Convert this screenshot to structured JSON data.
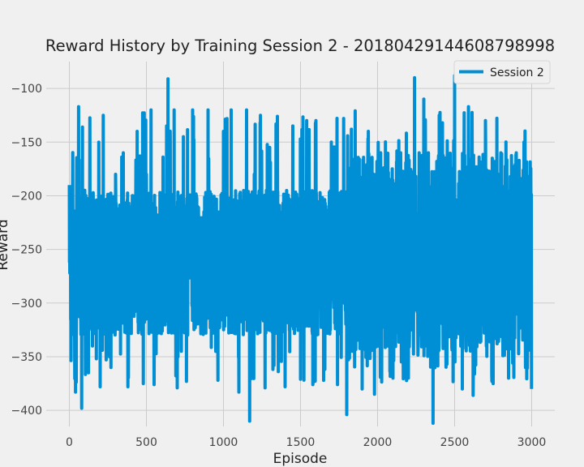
{
  "chart_data": {
    "type": "line",
    "title": "Reward History by Training Session 2 - 20180429144608798998",
    "xlabel": "Episode",
    "ylabel": "Reward",
    "xlim": [
      -150,
      3150
    ],
    "ylim": [
      -415,
      -75
    ],
    "xticks": [
      0,
      500,
      1000,
      1500,
      2000,
      2500,
      3000
    ],
    "yticks": [
      -400,
      -350,
      -300,
      -250,
      -200,
      -150,
      -100
    ],
    "xtick_labels": [
      "0",
      "500",
      "1000",
      "1500",
      "2000",
      "2500",
      "3000"
    ],
    "ytick_labels": [
      "−400",
      "−350",
      "−300",
      "−250",
      "−200",
      "−150",
      "−100"
    ],
    "grid": true,
    "legend": {
      "position": "top-right"
    },
    "colors": {
      "series": "#008fd5",
      "background": "#f0f0f0",
      "grid": "#cbcbcb"
    },
    "series": [
      {
        "name": "Session 2",
        "episodes": 3000,
        "points": [
          [
            0,
            -190
          ],
          [
            40,
            -383
          ],
          [
            60,
            -117
          ],
          [
            80,
            -398
          ],
          [
            100,
            -195
          ],
          [
            150,
            -340
          ],
          [
            200,
            -378
          ],
          [
            220,
            -125
          ],
          [
            260,
            -350
          ],
          [
            300,
            -180
          ],
          [
            350,
            -160
          ],
          [
            380,
            -378
          ],
          [
            440,
            -140
          ],
          [
            480,
            -375
          ],
          [
            500,
            -180
          ],
          [
            530,
            -120
          ],
          [
            550,
            -376
          ],
          [
            600,
            -260
          ],
          [
            640,
            -91
          ],
          [
            680,
            -120
          ],
          [
            700,
            -379
          ],
          [
            740,
            -145
          ],
          [
            760,
            -373
          ],
          [
            800,
            -120
          ],
          [
            850,
            -320
          ],
          [
            900,
            -120
          ],
          [
            950,
            -345
          ],
          [
            1000,
            -140
          ],
          [
            1050,
            -120
          ],
          [
            1100,
            -383
          ],
          [
            1150,
            -120
          ],
          [
            1170,
            -410
          ],
          [
            1200,
            -180
          ],
          [
            1240,
            -125
          ],
          [
            1270,
            -379
          ],
          [
            1300,
            -155
          ],
          [
            1350,
            -126
          ],
          [
            1400,
            -378
          ],
          [
            1450,
            -135
          ],
          [
            1500,
            -371
          ],
          [
            1540,
            -130
          ],
          [
            1580,
            -376
          ],
          [
            1600,
            -130
          ],
          [
            1650,
            -372
          ],
          [
            1700,
            -150
          ],
          [
            1740,
            -376
          ],
          [
            1780,
            -128
          ],
          [
            1800,
            -404
          ],
          [
            1830,
            -138
          ],
          [
            1900,
            -380
          ],
          [
            1940,
            -140
          ],
          [
            1980,
            -385
          ],
          [
            2020,
            -160
          ],
          [
            2100,
            -370
          ],
          [
            2150,
            -160
          ],
          [
            2200,
            -370
          ],
          [
            2240,
            -90
          ],
          [
            2270,
            -160
          ],
          [
            2300,
            -110
          ],
          [
            2330,
            -160
          ],
          [
            2360,
            -412
          ],
          [
            2400,
            -125
          ],
          [
            2450,
            -357
          ],
          [
            2500,
            -88
          ],
          [
            2550,
            -380
          ],
          [
            2590,
            -117
          ],
          [
            2620,
            -386
          ],
          [
            2700,
            -130
          ],
          [
            2750,
            -375
          ],
          [
            2800,
            -160
          ],
          [
            2850,
            -370
          ],
          [
            2900,
            -160
          ],
          [
            2950,
            -150
          ],
          [
            3000,
            -380
          ]
        ]
      }
    ]
  }
}
